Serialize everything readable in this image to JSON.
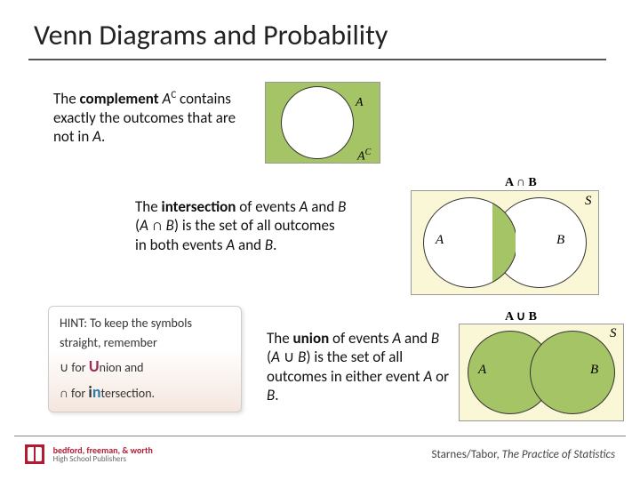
{
  "title": "Venn Diagrams and Probability",
  "sec1": {
    "text_html": "The <strong>complement</strong> <em>A</em><span class='sup'>C</span> contains exactly the outcomes that are not in <em>A</em>.",
    "figure": {
      "type": "venn-complement",
      "rect_color": "#a4c465",
      "circle_fill": "#ffffff",
      "border_color": "#333333",
      "label_A": "A",
      "label_Ac_html": "A<span class='supc'>C</span>"
    }
  },
  "sec2": {
    "text_html": "The <strong>intersection</strong> of events <em>A</em> and <em>B</em> (<em>A</em> ∩ <em>B</em>) is the set of all outcomes in both events <em>A</em> and <em>B</em>.",
    "caption": "A ∩ B",
    "figure": {
      "type": "venn-intersection",
      "rect_color": "#faf7d6",
      "circle_fill": "#ffffff",
      "lens_fill": "#a4c465",
      "border_color": "#333333",
      "label_A": "A",
      "label_B": "B",
      "label_S": "S"
    }
  },
  "sec3": {
    "text_html": "The <strong>union</strong> of events <em>A</em> and <em>B</em> (<em>A</em> ∪ <em>B</em>) is the set of all outcomes in either event <em>A</em> or <em>B</em>.",
    "caption": "A ∪ B",
    "figure": {
      "type": "venn-union",
      "rect_color": "#faf7d6",
      "circle_fill": "#a4c465",
      "border_color": "#333333",
      "label_A": "A",
      "label_B": "B",
      "label_S": "S"
    }
  },
  "hint": {
    "line1": "HINT: To keep the symbols straight, remember",
    "line2_html": "∪ for <span class='bigU'>U</span>nion and",
    "line3_html": "∩ for <span class='big'>i</span><span class='bigN'>n</span>tersection."
  },
  "footer": {
    "brand_line1": "bedford, freeman, & worth",
    "brand_line2": "High School Publishers",
    "credit_html": "Starnes/Tabor, <em>The Practice of Statistics</em>"
  },
  "colors": {
    "venn_green": "#a4c465",
    "venn_cream": "#faf7d6",
    "brand_red": "#b31b34",
    "rule_gray": "#555555"
  }
}
